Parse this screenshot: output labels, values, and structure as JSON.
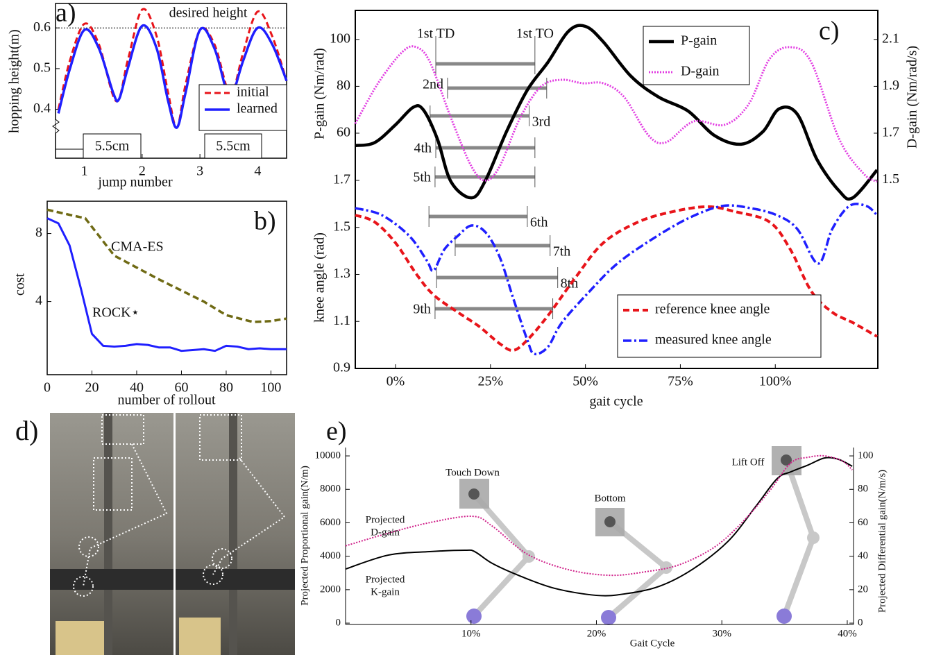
{
  "chart_data": [
    {
      "type": "line",
      "panel_label": "a)",
      "x_label": "jump number",
      "y_label": "hopping height(m)",
      "xlim": [
        0.5,
        4.5
      ],
      "xticks": [
        1,
        2,
        3,
        4
      ],
      "ylim": [
        0.28,
        0.66
      ],
      "yticks": [
        0.4,
        0.5,
        0.6
      ],
      "smooth": true,
      "reference_line": {
        "value": 0.6,
        "label": "desired height"
      },
      "annotations": [
        "5.5cm",
        "5.5cm"
      ],
      "legend": "center right",
      "series": [
        {
          "name": "initial",
          "color": "#e8141a",
          "dash": "dashed",
          "width": 3,
          "x": [
            0.55,
            0.75,
            1.0,
            1.25,
            1.55,
            1.75,
            2.0,
            2.25,
            2.45,
            2.6,
            2.75,
            3.0,
            3.25,
            3.45,
            3.55,
            3.75,
            4.0,
            4.25,
            4.5
          ],
          "values": [
            0.4,
            0.52,
            0.61,
            0.56,
            0.42,
            0.52,
            0.645,
            0.58,
            0.44,
            0.355,
            0.46,
            0.595,
            0.56,
            0.46,
            0.43,
            0.54,
            0.64,
            0.58,
            0.47
          ]
        },
        {
          "name": "learned",
          "color": "#1f1fff",
          "dash": "solid",
          "width": 3.5,
          "x": [
            0.55,
            0.75,
            1.0,
            1.25,
            1.5,
            1.6,
            1.75,
            2.0,
            2.25,
            2.45,
            2.6,
            2.75,
            3.0,
            3.25,
            3.45,
            3.55,
            3.75,
            4.0,
            4.25,
            4.5
          ],
          "values": [
            0.39,
            0.5,
            0.595,
            0.55,
            0.44,
            0.425,
            0.5,
            0.605,
            0.55,
            0.42,
            0.355,
            0.44,
            0.595,
            0.55,
            0.45,
            0.43,
            0.52,
            0.6,
            0.56,
            0.47
          ]
        }
      ]
    },
    {
      "type": "line",
      "panel_label": "b)",
      "x_label": "number of rollout",
      "y_label": "cost",
      "xlim": [
        0,
        107
      ],
      "xticks": [
        0,
        20,
        40,
        60,
        80,
        100
      ],
      "ylim": [
        -0.3,
        9.9
      ],
      "yticks": [
        4,
        8
      ],
      "smooth": false,
      "series": [
        {
          "name": "CMA-ES",
          "color": "#6f6a14",
          "dash": "dashed",
          "width": 3.5,
          "x": [
            0,
            10,
            17,
            30,
            50,
            70,
            80,
            92,
            100,
            107
          ],
          "values": [
            9.4,
            9.1,
            8.9,
            6.7,
            5.3,
            4.0,
            3.2,
            2.8,
            2.85,
            3.0
          ]
        },
        {
          "name": "ROCK⋆",
          "color": "#1f1fff",
          "dash": "solid",
          "width": 3,
          "x": [
            0,
            5,
            10,
            15,
            20,
            25,
            30,
            35,
            40,
            45,
            50,
            55,
            60,
            65,
            70,
            75,
            80,
            85,
            90,
            95,
            100,
            107
          ],
          "values": [
            8.9,
            8.6,
            7.3,
            4.8,
            2.1,
            1.4,
            1.35,
            1.4,
            1.5,
            1.45,
            1.3,
            1.3,
            1.1,
            1.15,
            1.2,
            1.1,
            1.4,
            1.35,
            1.2,
            1.25,
            1.2,
            1.2
          ]
        }
      ]
    },
    {
      "type": "line",
      "panel_label": "c)",
      "y_label": "P-gain (Nm/rad)",
      "y2_label": "D-gain (Nm/rad/s)",
      "xlim": [
        -10.6,
        127
      ],
      "ylim": [
        -40.4,
        112.4
      ],
      "yticks": [
        60,
        80,
        100
      ],
      "y2lim": [
        0.696,
        2.224
      ],
      "y2ticks": [
        1.5,
        1.7,
        1.9,
        2.1
      ],
      "smooth": true,
      "legend": "upper right",
      "series": [
        {
          "name": "P-gain",
          "color": "#000000",
          "dash": "solid",
          "width": 4.5,
          "x": [
            -10.6,
            -5.5,
            0,
            4.6,
            7.3,
            11,
            14.6,
            20,
            23.7,
            29.2,
            34.7,
            40.1,
            45.6,
            50,
            54.7,
            62,
            69.3,
            77,
            84,
            91,
            96.7,
            101,
            105.8,
            111,
            116.8,
            120.4,
            126.8
          ],
          "values": [
            54.7,
            56,
            63.6,
            71,
            70,
            57.6,
            39.3,
            32.4,
            39.9,
            60.6,
            78.4,
            90.2,
            103.6,
            105.6,
            99,
            84.3,
            75.4,
            69.5,
            59,
            55.3,
            60.6,
            70.4,
            68.1,
            48.7,
            35.4,
            32.4,
            44.3
          ]
        },
        {
          "name": "D-gain",
          "color": "#e23de2",
          "dash": "dotted",
          "width": 3,
          "axis": "y2",
          "x": [
            -10.6,
            -4.6,
            1.8,
            5.5,
            9.1,
            14.6,
            20,
            23.7,
            27.4,
            32.8,
            38.3,
            43.8,
            49.3,
            54.7,
            60.2,
            66.6,
            71.2,
            78.5,
            86.7,
            93,
            98.5,
            104,
            109.5,
            116.8,
            123.2,
            126.8
          ],
          "values": [
            1.741,
            1.913,
            2.047,
            2.067,
            2.002,
            1.765,
            1.558,
            1.498,
            1.558,
            1.765,
            1.899,
            1.928,
            1.913,
            1.913,
            1.854,
            1.691,
            1.661,
            1.75,
            1.736,
            1.824,
            2.017,
            2.067,
            2.002,
            1.676,
            1.528,
            1.493
          ]
        }
      ],
      "jumps": [
        {
          "label": "1st TD",
          "end_label": "1st TO",
          "start": 10.6,
          "end": 36.7
        },
        {
          "label": "2nd",
          "start": 13.7,
          "end": 39.8
        },
        {
          "label": "3rd",
          "start": 9.1,
          "end": 35.2
        },
        {
          "label": "4th",
          "start": 10.6,
          "end": 36.7
        },
        {
          "label": "5th",
          "start": 10.4,
          "end": 36.7
        },
        {
          "label": "6th",
          "start": 8.8,
          "end": 34.7
        },
        {
          "label": "7th",
          "start": 15.7,
          "end": 40.7
        },
        {
          "label": "8th",
          "start": 10.8,
          "end": 42.7
        },
        {
          "label": "9th",
          "start": 10.4,
          "end": 41.4
        }
      ]
    },
    {
      "type": "line",
      "x_label": "gait cycle",
      "y_label": "knee angle (rad)",
      "xlim": [
        -10.6,
        127
      ],
      "xticks": [
        {
          "value": 0,
          "label": "0%"
        },
        {
          "value": 25,
          "label": "25%"
        },
        {
          "value": 50,
          "label": "50%"
        },
        {
          "value": 75,
          "label": "75%"
        },
        {
          "value": 100,
          "label": "100%"
        }
      ],
      "ylim": [
        0.9,
        2.423
      ],
      "yticks": [
        0.9,
        1.1,
        1.3,
        1.5,
        1.7
      ],
      "smooth": true,
      "legend": "lower right",
      "series": [
        {
          "name": "reference knee angle",
          "color": "#e8141a",
          "dash": "dashed",
          "width": 4,
          "x": [
            -10.6,
            -5.5,
            0,
            5.5,
            10,
            16.4,
            21.9,
            27.4,
            31,
            34.7,
            40.1,
            47.4,
            54.7,
            63.9,
            73,
            82.1,
            89.4,
            98.5,
            104,
            109.5,
            115,
            120.4,
            126.8
          ],
          "values": [
            1.552,
            1.523,
            1.434,
            1.301,
            1.213,
            1.139,
            1.08,
            1.006,
            0.977,
            1.021,
            1.124,
            1.287,
            1.434,
            1.523,
            1.567,
            1.588,
            1.567,
            1.523,
            1.405,
            1.228,
            1.139,
            1.095,
            1.036
          ]
        },
        {
          "name": "measured knee angle",
          "color": "#1f1fff",
          "dash": "dashdot",
          "width": 3.5,
          "x": [
            -10.6,
            -3.6,
            3.6,
            8.2,
            10,
            12.8,
            16.4,
            20,
            23.7,
            27.4,
            31,
            34.7,
            36.5,
            40.1,
            43.8,
            51.1,
            58.4,
            67.5,
            77,
            86,
            93.4,
            100.4,
            105.8,
            111.3,
            115,
            119.5,
            124,
            126.8
          ],
          "values": [
            1.582,
            1.552,
            1.464,
            1.36,
            1.316,
            1.405,
            1.464,
            1.508,
            1.479,
            1.375,
            1.198,
            1.021,
            0.962,
            0.991,
            1.095,
            1.228,
            1.346,
            1.449,
            1.538,
            1.591,
            1.582,
            1.552,
            1.493,
            1.346,
            1.493,
            1.591,
            1.591,
            1.552
          ]
        }
      ]
    },
    {
      "type": "line",
      "panel_label": "e)",
      "x_label": "Gait Cycle",
      "y_label": "Projected Proportional gain(N/m)",
      "y2_label": "Projected Differential gain(N/m/s)",
      "xlim": [
        0,
        40.5
      ],
      "xticks": [
        {
          "value": 10,
          "label": "10%"
        },
        {
          "value": 20,
          "label": "20%"
        },
        {
          "value": 30,
          "label": "30%"
        },
        {
          "value": 40,
          "label": "40%"
        }
      ],
      "ylim": [
        -80,
        10500
      ],
      "yticks": [
        0,
        2000,
        4000,
        6000,
        8000,
        10000
      ],
      "y2lim": [
        -0.8,
        105
      ],
      "y2ticks": [
        0,
        20,
        40,
        60,
        80,
        100
      ],
      "smooth": true,
      "annotations": [
        "Touch Down",
        "Bottom",
        "Lift Off"
      ],
      "series": [
        {
          "label": [
            "Projected",
            "K-gain"
          ],
          "color": "#000000",
          "dash": "solid",
          "width": 2,
          "x": [
            0,
            3.4,
            6.7,
            9.5,
            10.3,
            11.7,
            13.9,
            16.7,
            20,
            22.2,
            25,
            27.7,
            30.5,
            32.7,
            34.4,
            35.5,
            36.9,
            38.2,
            39.3,
            40.4
          ],
          "values": [
            3237,
            4067,
            4275,
            4358,
            4275,
            3569,
            2822,
            2075,
            1660,
            1743,
            2200,
            3237,
            4897,
            6972,
            8632,
            9047,
            9462,
            9877,
            9794,
            9379
          ]
        },
        {
          "label": [
            "Projected",
            "D-gain"
          ],
          "color": "#d0208a",
          "dash": "dotted",
          "width": 2,
          "axis": "y2",
          "x": [
            0,
            3.4,
            6.7,
            10.1,
            11.7,
            14.5,
            17.8,
            21.1,
            23.9,
            26.6,
            29.4,
            31.6,
            33.8,
            35.5,
            36.9,
            38.2,
            39.6,
            40.4
          ],
          "values": [
            46.2,
            53.8,
            60.1,
            63.9,
            58,
            41.2,
            31.9,
            28.6,
            30.7,
            34.9,
            45.4,
            60.1,
            79,
            95.8,
            99.2,
            100,
            97,
            91.6
          ]
        }
      ]
    }
  ],
  "photo_panel": {
    "panel_label": "d)"
  }
}
